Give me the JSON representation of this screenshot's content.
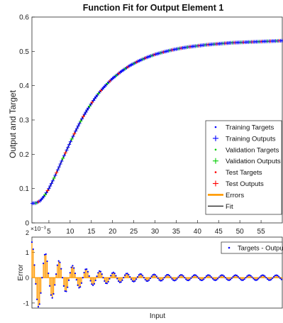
{
  "chart_data": [
    {
      "type": "scatter",
      "title": "Function Fit for Output Element 1",
      "ylabel": "Output and Target",
      "xlim": [
        1,
        60
      ],
      "ylim": [
        0,
        0.6
      ],
      "yticks": [
        "0",
        "0.1",
        "0.2",
        "0.3",
        "0.4",
        "0.5",
        "0.6"
      ],
      "xticks": [
        5,
        10,
        15,
        20,
        25,
        30,
        35,
        40,
        45,
        50,
        55
      ],
      "xticklabels": [
        "5",
        "10",
        "15",
        "20",
        "25",
        "30",
        "35",
        "40",
        "45",
        "50",
        "55"
      ],
      "grid": false,
      "legend_position": "lower-right",
      "legend": [
        {
          "label": "Training Targets",
          "marker": "dot",
          "color": "#0000ff"
        },
        {
          "label": "Training Outputs",
          "marker": "plus",
          "color": "#0000ff"
        },
        {
          "label": "Validation Targets",
          "marker": "dot",
          "color": "#00cc00"
        },
        {
          "label": "Validation Outputs",
          "marker": "plus",
          "color": "#00cc00"
        },
        {
          "label": "Test Targets",
          "marker": "dot",
          "color": "#ff0000"
        },
        {
          "label": "Test Outputs",
          "marker": "plus",
          "color": "#ff0000"
        },
        {
          "label": "Errors",
          "marker": "line",
          "color": "#ff9900"
        },
        {
          "label": "Fit",
          "marker": "line",
          "color": "#000000"
        }
      ],
      "curve": {
        "x": [
          1,
          2,
          3,
          4,
          5,
          6,
          7,
          8,
          9,
          10,
          11,
          12,
          13,
          14,
          15,
          16,
          17,
          18,
          19,
          20,
          22,
          24,
          26,
          28,
          30,
          32,
          34,
          36,
          38,
          40,
          42,
          44,
          46,
          48,
          50,
          52,
          54,
          56,
          58,
          60
        ],
        "y": [
          0.057,
          0.058,
          0.065,
          0.08,
          0.1,
          0.125,
          0.152,
          0.18,
          0.207,
          0.234,
          0.26,
          0.285,
          0.308,
          0.329,
          0.348,
          0.366,
          0.382,
          0.396,
          0.409,
          0.421,
          0.441,
          0.458,
          0.471,
          0.482,
          0.491,
          0.498,
          0.504,
          0.509,
          0.513,
          0.516,
          0.519,
          0.521,
          0.523,
          0.525,
          0.526,
          0.527,
          0.528,
          0.529,
          0.53,
          0.531
        ]
      }
    },
    {
      "type": "line",
      "ylabel": "Error",
      "xlabel": "Input",
      "exponent_label": "×10⁻³",
      "exponent_base": "2",
      "xlim": [
        1,
        60
      ],
      "ylim": [
        -1.2,
        1.6
      ],
      "yticks": [
        "-1",
        "0",
        "1"
      ],
      "legend": [
        {
          "label": "Targets - Outputs",
          "marker": "dot",
          "color": "#0000ff"
        }
      ],
      "series": {
        "amplitude_start": 1.3,
        "decay": 0.13,
        "period": 3.2,
        "floor_amplitude": 0.1
      }
    }
  ]
}
